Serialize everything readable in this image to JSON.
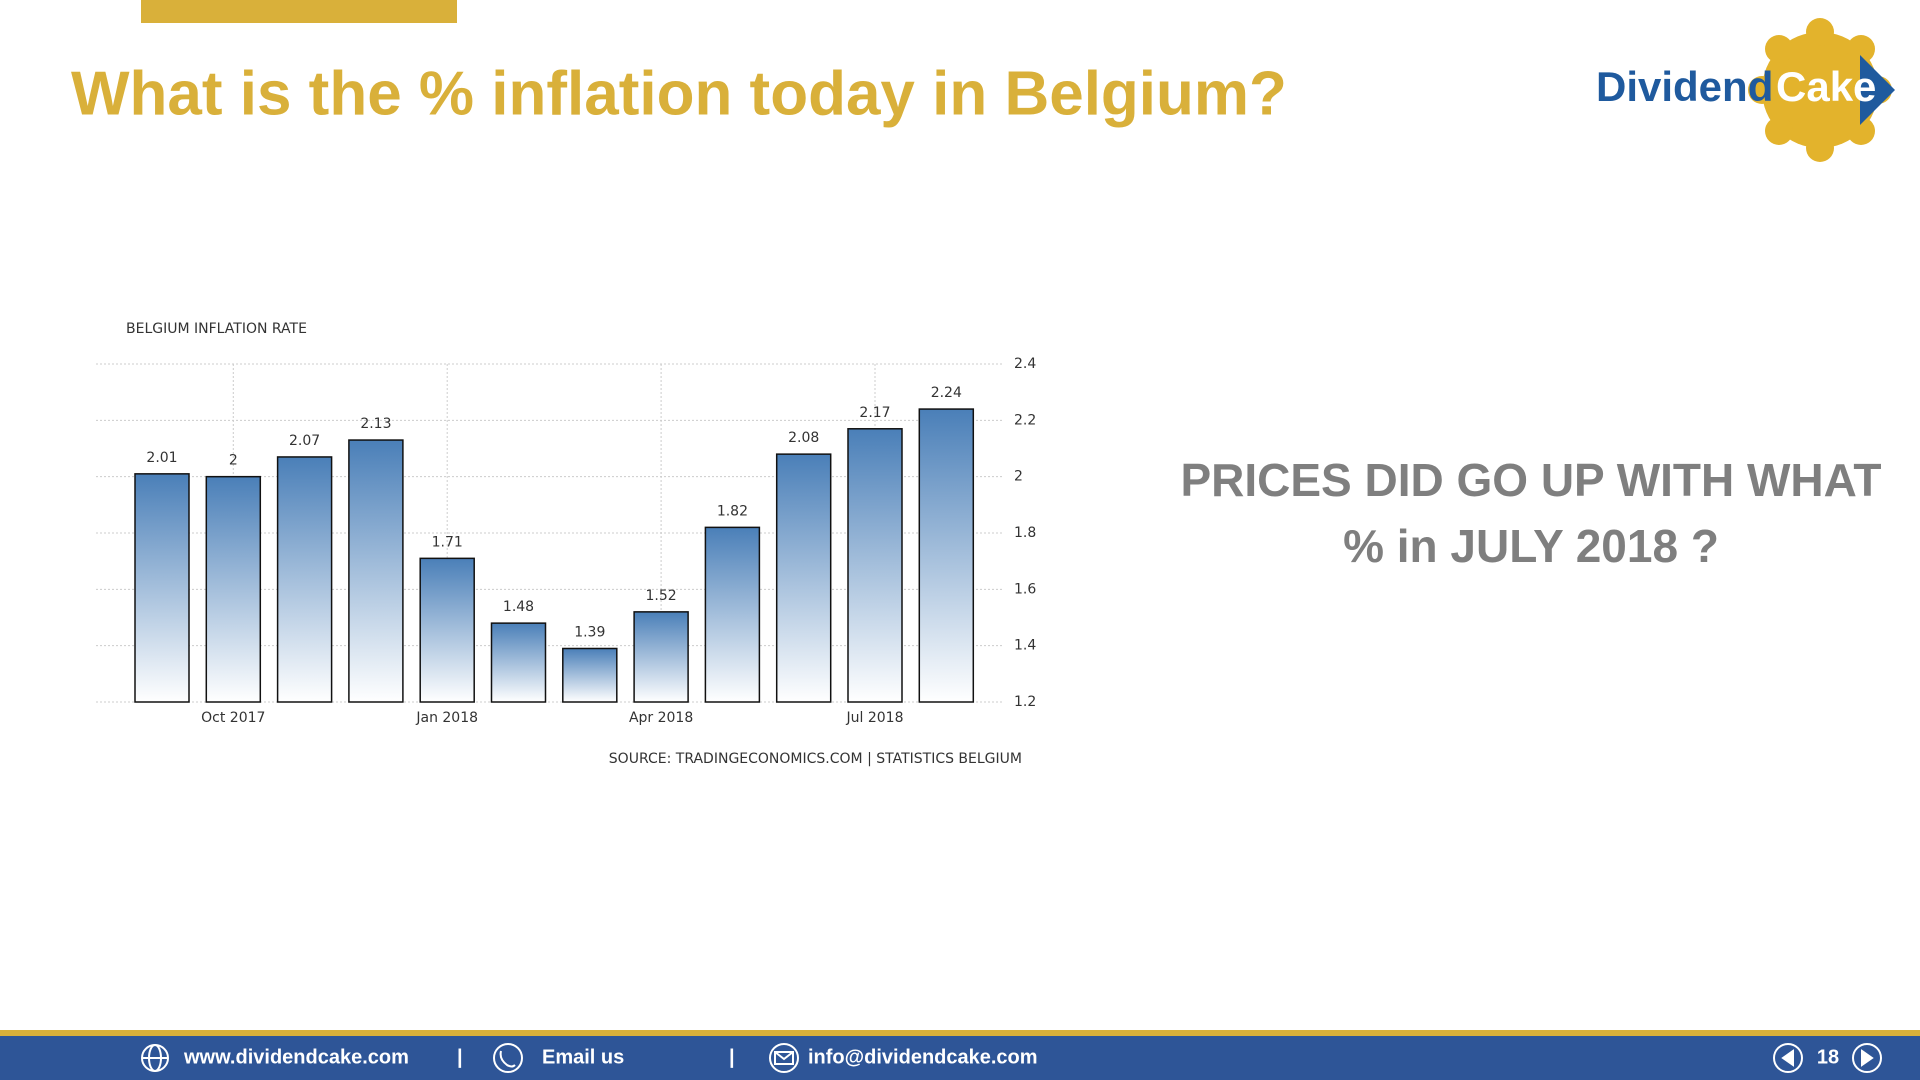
{
  "header": {
    "title": "What is the % inflation today in Belgium?",
    "logo": {
      "left": "Dividend",
      "right": "Cake"
    }
  },
  "chart_data": {
    "type": "bar",
    "title": "BELGIUM INFLATION RATE",
    "categories": [
      null,
      "Oct 2017",
      null,
      null,
      "Jan 2018",
      null,
      null,
      "Apr 2018",
      null,
      null,
      "Jul 2018",
      null
    ],
    "values": [
      2.01,
      2,
      2.07,
      2.13,
      1.71,
      1.48,
      1.39,
      1.52,
      1.82,
      2.08,
      2.17,
      2.24
    ],
    "color": "#4a7fb8",
    "ylim": [
      1.2,
      2.4
    ],
    "yticks": [
      1.2,
      1.4,
      1.6,
      1.8,
      2,
      2.2,
      2.4
    ],
    "grid": true,
    "source": "SOURCE: TRADINGECONOMICS.COM | STATISTICS BELGIUM"
  },
  "question": {
    "lines": [
      "PRICES DID GO UP WITH WHAT",
      "% in JULY 2018 ?"
    ]
  },
  "footer": {
    "website": "www.dividendcake.com",
    "separator": "|",
    "email_label": "Email us",
    "email": "info@dividendcake.com",
    "page": "18"
  }
}
